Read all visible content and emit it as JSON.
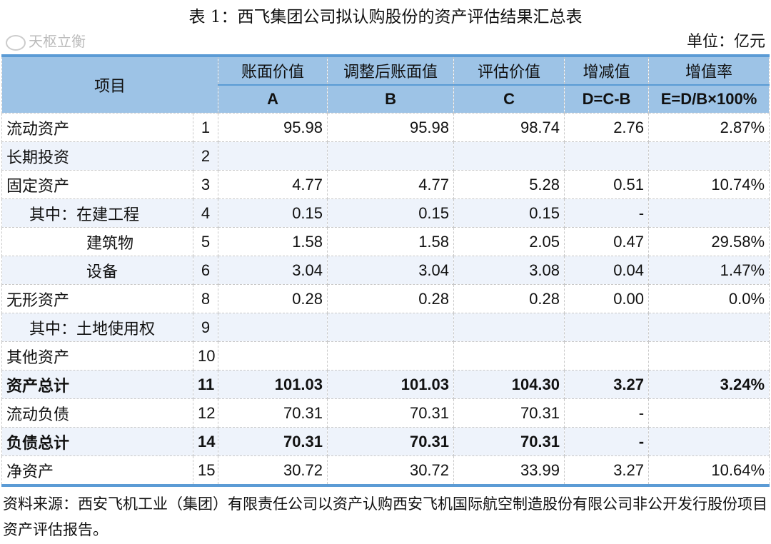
{
  "title": "表  1：西飞集团公司拟认购股份的资产评估结果汇总表",
  "unit": "单位：亿元",
  "header": {
    "item": "项目",
    "cols": [
      "账面价值",
      "调整后账面值",
      "评估价值",
      "增减值",
      "增值率"
    ],
    "codes": [
      "A",
      "B",
      "C",
      "D=C-B",
      "E=D/B×100%"
    ]
  },
  "rows": [
    {
      "name": "流动资产",
      "no": "1",
      "a": "95.98",
      "b": "95.98",
      "c": "98.74",
      "d": "2.76",
      "e": "2.87%"
    },
    {
      "name": "长期投资",
      "no": "2",
      "a": "",
      "b": "",
      "c": "",
      "d": "",
      "e": ""
    },
    {
      "name": "固定资产",
      "no": "3",
      "a": "4.77",
      "b": "4.77",
      "c": "5.28",
      "d": "0.51",
      "e": "10.74%"
    },
    {
      "name": "其中：在建工程",
      "no": "4",
      "a": "0.15",
      "b": "0.15",
      "c": "0.15",
      "d": "-",
      "e": ""
    },
    {
      "name": "建筑物",
      "no": "5",
      "a": "1.58",
      "b": "1.58",
      "c": "2.05",
      "d": "0.47",
      "e": "29.58%"
    },
    {
      "name": "设备",
      "no": "6",
      "a": "3.04",
      "b": "3.04",
      "c": "3.08",
      "d": "0.04",
      "e": "1.47%"
    },
    {
      "name": "无形资产",
      "no": "8",
      "a": "0.28",
      "b": "0.28",
      "c": "0.28",
      "d": "0.00",
      "e": "0.0%"
    },
    {
      "name": "其中：土地使用权",
      "no": "9",
      "a": "",
      "b": "",
      "c": "",
      "d": "",
      "e": ""
    },
    {
      "name": "其他资产",
      "no": "10",
      "a": "",
      "b": "",
      "c": "",
      "d": "",
      "e": ""
    },
    {
      "name": "资产总计",
      "no": "11",
      "a": "101.03",
      "b": "101.03",
      "c": "104.30",
      "d": "3.27",
      "e": "3.24%"
    },
    {
      "name": "流动负债",
      "no": "12",
      "a": "70.31",
      "b": "70.31",
      "c": "70.31",
      "d": "-",
      "e": ""
    },
    {
      "name": "负债总计",
      "no": "14",
      "a": "70.31",
      "b": "70.31",
      "c": "70.31",
      "d": "-",
      "e": ""
    },
    {
      "name": "净资产",
      "no": "15",
      "a": "30.72",
      "b": "30.72",
      "c": "33.99",
      "d": "3.27",
      "e": "10.64%"
    }
  ],
  "source": "资料来源：西安飞机工业（集团）有限责任公司以资产认购西安飞机国际航空制造股份有限公司非公开发行股份项目资产评估报告。",
  "watermark": "天枢立衡",
  "colors": {
    "header_bg": "#9dc3e6",
    "rule": "#5b9bd5",
    "alt_row": "#eef3fb"
  }
}
